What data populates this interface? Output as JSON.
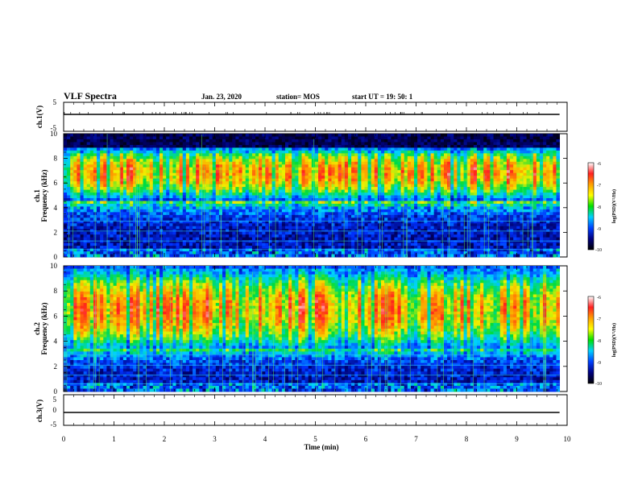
{
  "header": {
    "title": "VLF Spectra",
    "date": "Jan. 23, 2020",
    "station": "station= MOS",
    "start_ut": "start  UT =   19: 50: 1"
  },
  "colorbar": {
    "label": "log(PSD)(V²/Hz)",
    "ticks": [
      "-6",
      "-7",
      "-8",
      "-9",
      "-10"
    ],
    "colors": [
      "#ffffff",
      "#ff2020",
      "#ffa000",
      "#ffff00",
      "#00e000",
      "#00d0ff",
      "#0040ff",
      "#000080",
      "#000000"
    ]
  },
  "chart_data": [
    {
      "type": "line",
      "panel": "ch1-voltage",
      "ylabel": "ch.1(V)",
      "ylim": [
        -5,
        5
      ],
      "yticks": [
        "5",
        "-5"
      ],
      "xlim": [
        0,
        10
      ],
      "series": [
        {
          "values_note": "",
          "x": [
            0,
            9.85
          ],
          "y": [
            0,
            0
          ]
        }
      ]
    },
    {
      "type": "heatmap",
      "panel": "ch1-spectrogram",
      "ylabel": "ch.1 Frequency (kHz)",
      "ylabel_line1": "ch.1",
      "ylabel_line2": "Frequency (kHz)",
      "ylim": [
        0,
        10
      ],
      "yticks": [
        "0",
        "2",
        "4",
        "6",
        "8",
        "10"
      ],
      "xlim": [
        0,
        10
      ],
      "color_range": [
        -10,
        -6
      ],
      "emission_band_khz": [
        4.5,
        8.5
      ],
      "peak_khz": 6.8,
      "saturated_above_khz": 8.8
    },
    {
      "type": "heatmap",
      "panel": "ch2-spectrogram",
      "ylabel": "ch.2 Frequency (kHz)",
      "ylabel_line1": "ch.2",
      "ylabel_line2": "Frequency (kHz)",
      "ylim": [
        0,
        10
      ],
      "yticks": [
        "0",
        "2",
        "4",
        "6",
        "8",
        "10"
      ],
      "xlim": [
        0,
        10
      ],
      "color_range": [
        -10,
        -6
      ],
      "emission_band_khz": [
        3.5,
        9.5
      ],
      "peak_khz": 6.5
    },
    {
      "type": "line",
      "panel": "ch3-voltage",
      "ylabel": "ch.3(V)",
      "ylim": [
        -5,
        5
      ],
      "yticks": [
        "5",
        "0",
        "-5"
      ],
      "xlim": [
        0,
        10
      ],
      "series": [
        {
          "x": [
            0,
            9.85
          ],
          "y": [
            -0.5,
            -0.5
          ]
        }
      ]
    }
  ],
  "xaxis": {
    "label": "Time (min)",
    "ticks": [
      "0",
      "1",
      "2",
      "3",
      "4",
      "5",
      "6",
      "7",
      "8",
      "9",
      "10"
    ]
  }
}
